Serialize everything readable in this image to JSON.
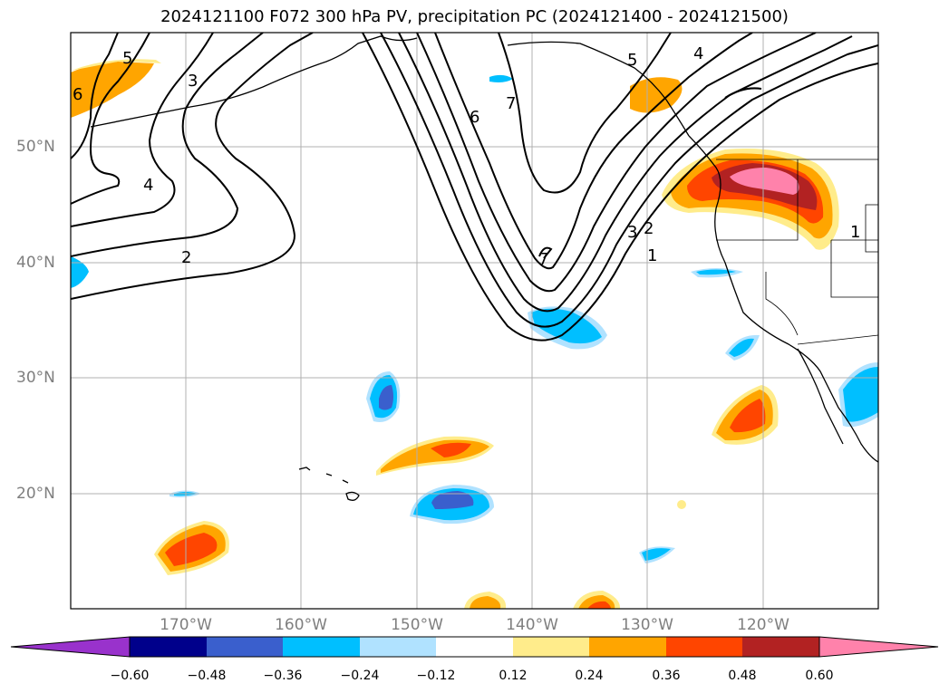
{
  "title": "2024121100 F072 300 hPa PV, precipitation PC (2024121400 - 2024121500)",
  "lat_labels": [
    "50°N",
    "40°N",
    "30°N",
    "20°N"
  ],
  "lon_labels": [
    "170°W",
    "160°W",
    "150°W",
    "140°W",
    "130°W",
    "120°W"
  ],
  "colorbar": {
    "ticks": [
      "−0.60",
      "−0.48",
      "−0.36",
      "−0.24",
      "−0.12",
      "0.12",
      "0.24",
      "0.36",
      "0.48",
      "0.60"
    ],
    "colors": [
      "#9932cc",
      "#00008b",
      "#3a5fcd",
      "#00bfff",
      "#b0e2ff",
      "#ffffff",
      "#ffec8b",
      "#ffa500",
      "#ff4500",
      "#b22222",
      "#ff82ab"
    ]
  },
  "contour_labels": [
    "5",
    "3",
    "4",
    "2",
    "6",
    "7",
    "7",
    "5",
    "4",
    "3",
    "2",
    "1",
    "1",
    "6"
  ],
  "map_extent": {
    "lon": [
      -180,
      -110
    ],
    "lat": [
      10,
      60
    ]
  }
}
